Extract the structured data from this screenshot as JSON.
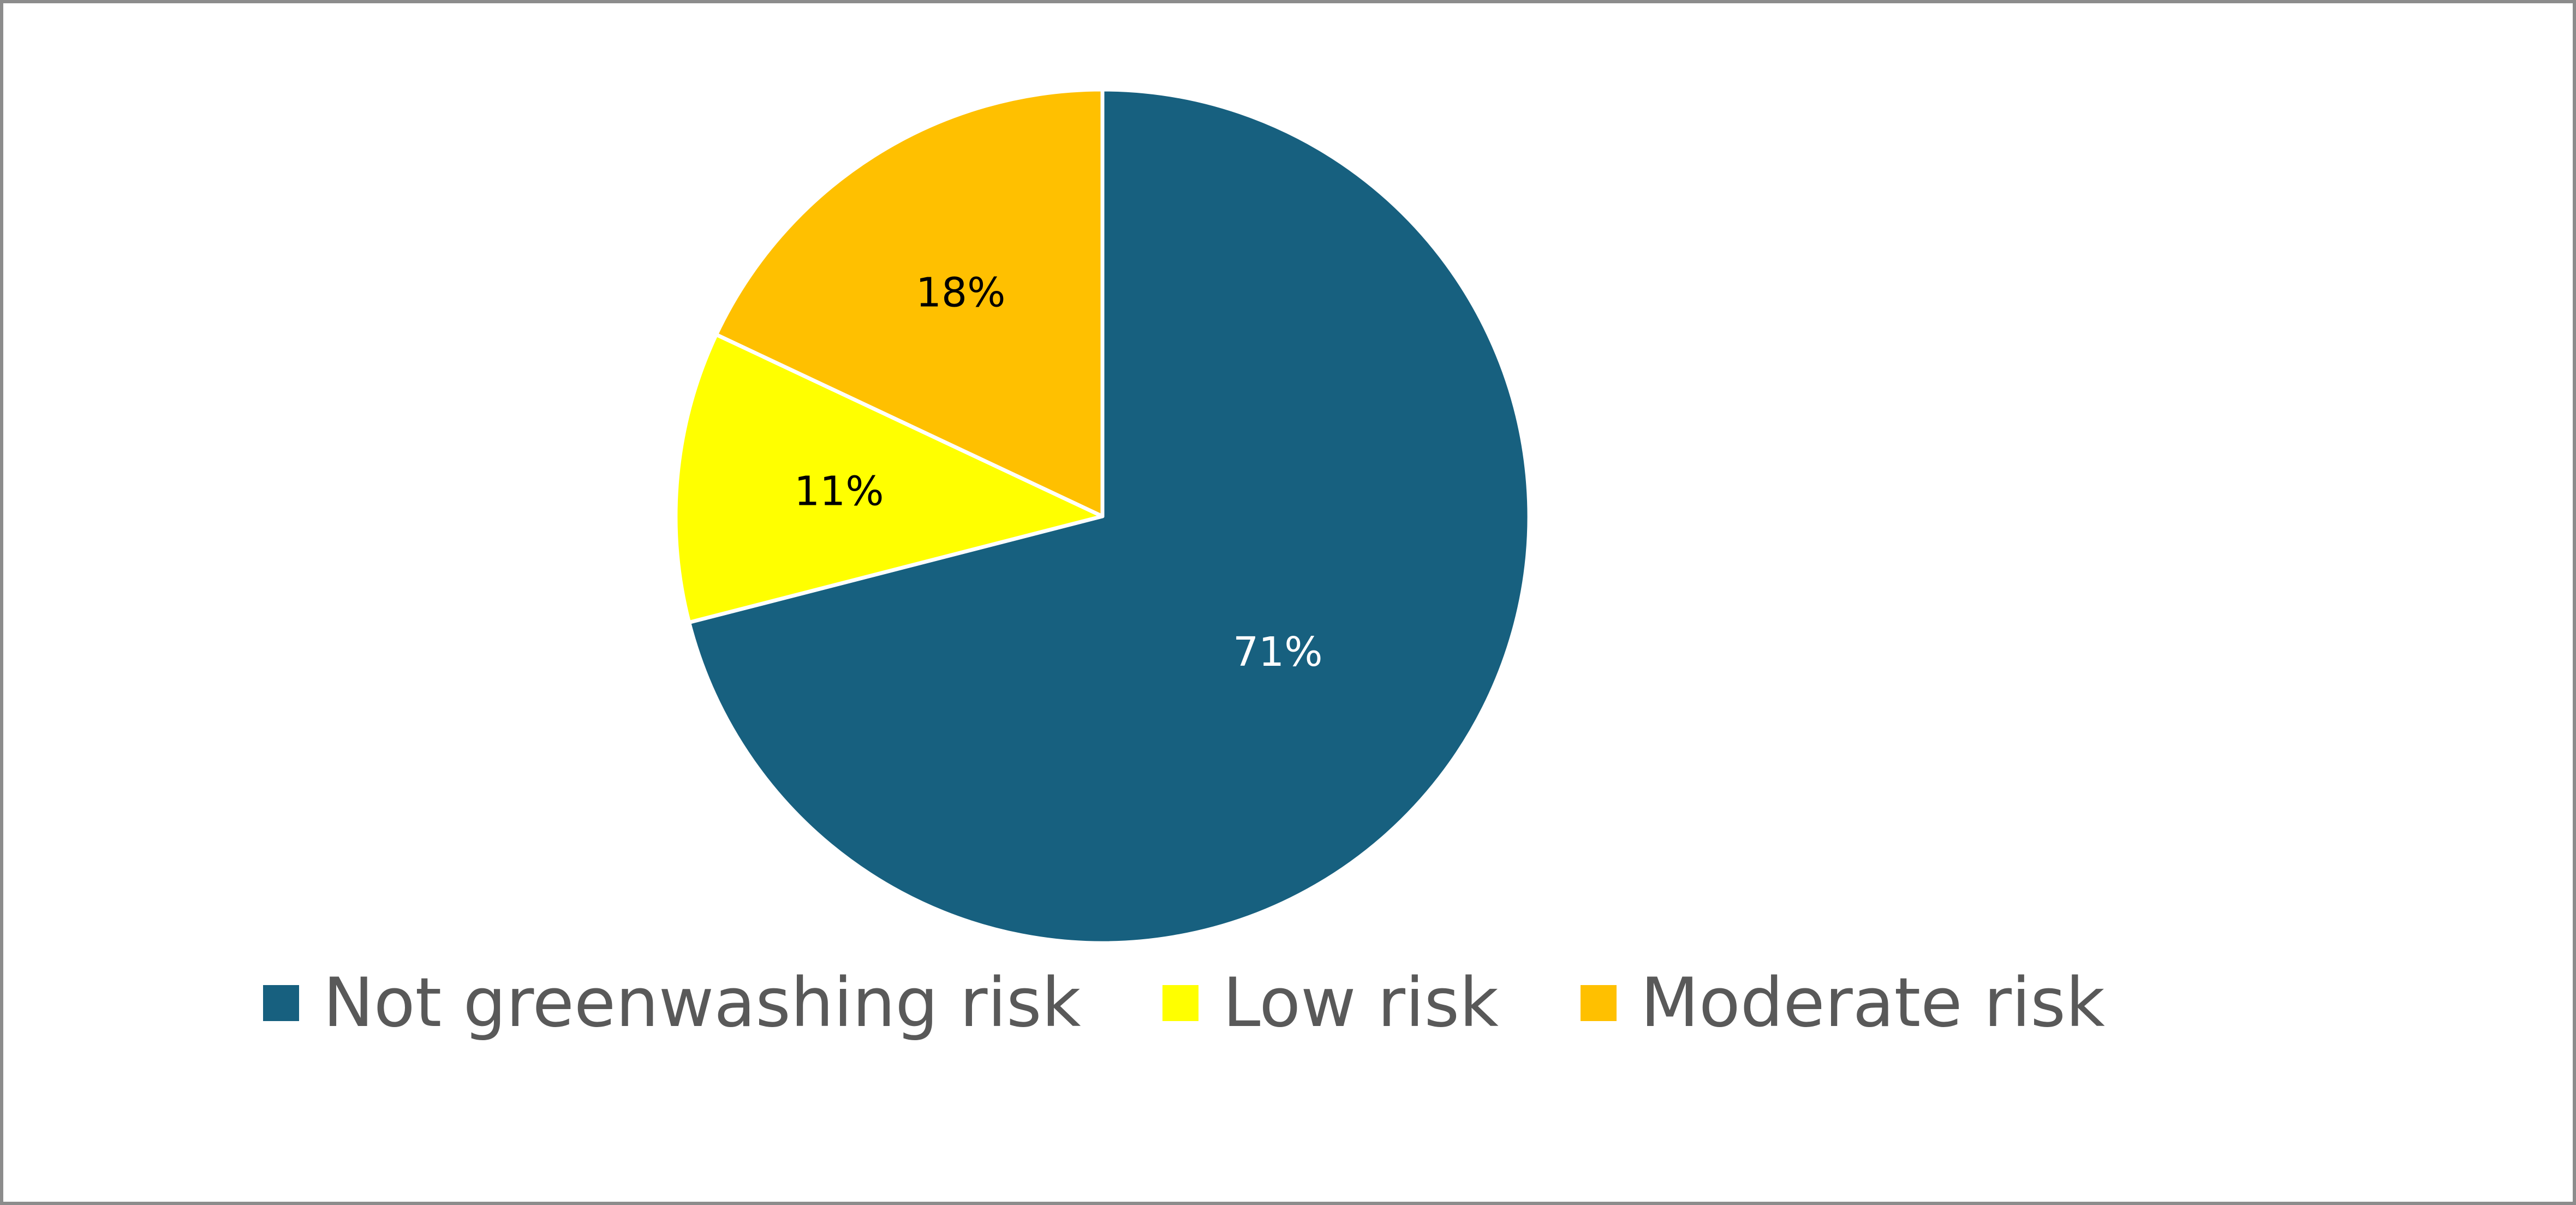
{
  "chart_data": {
    "type": "pie",
    "title": "",
    "legend_position": "bottom",
    "start_angle_deg": 0,
    "direction": "clockwise",
    "slices": [
      {
        "name": "Not greenwashing risk",
        "value": 71,
        "label": "71%",
        "color": "#17607f",
        "label_color": "#ffffff"
      },
      {
        "name": "Low risk",
        "value": 11,
        "label": "11%",
        "color": "#ffff00",
        "label_color": "#000000"
      },
      {
        "name": "Moderate risk",
        "value": 18,
        "label": "18%",
        "color": "#ffc000",
        "label_color": "#000000"
      }
    ]
  },
  "colors": {
    "background": "#ffffff",
    "border": "#8c8c8c",
    "slice_separator": "#ffffff",
    "legend_text": "#595959"
  }
}
